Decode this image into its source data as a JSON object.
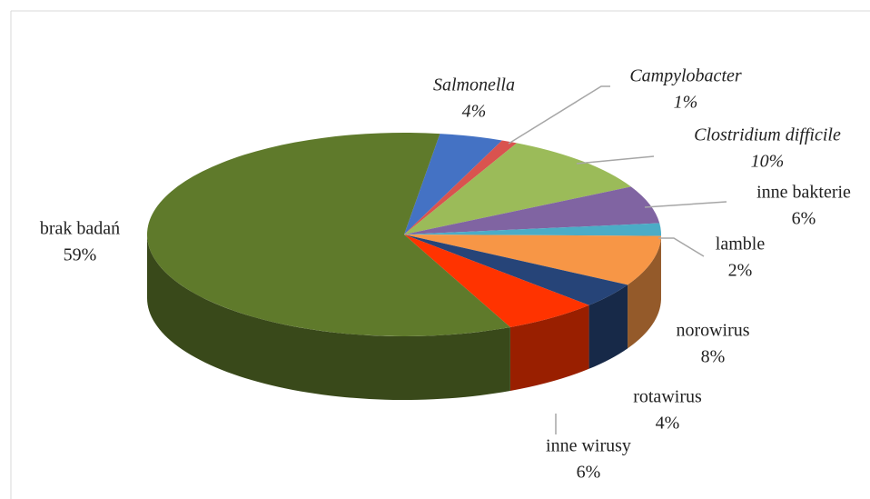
{
  "chart_data": {
    "type": "pie",
    "categories": [
      "Salmonella",
      "Campylobacter",
      "Clostridium difficile",
      "inne bakterie",
      "lamble",
      "norowirus",
      "rotawirus",
      "inne wirusy",
      "brak badań"
    ],
    "values": [
      4,
      1,
      10,
      6,
      2,
      8,
      4,
      6,
      59
    ],
    "value_labels": [
      "4%",
      "1%",
      "10%",
      "6%",
      "2%",
      "8%",
      "4%",
      "6%",
      "59%"
    ],
    "colors": [
      "#4472c4",
      "#d9534f",
      "#9bbb59",
      "#8064a2",
      "#4bacc6",
      "#f79646",
      "#264478",
      "#ff3300",
      "#5f7a2b"
    ],
    "italic_labels": [
      true,
      true,
      true,
      false,
      false,
      false,
      false,
      false,
      false
    ]
  }
}
